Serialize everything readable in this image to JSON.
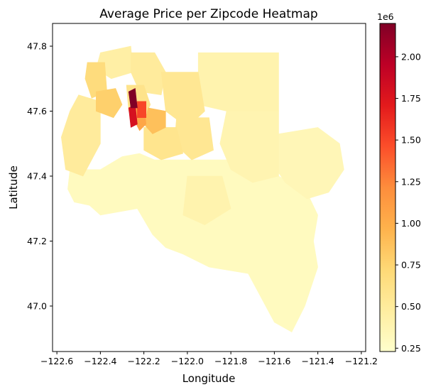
{
  "chart_data": {
    "type": "heatmap",
    "title": "Average Price per Zipcode Heatmap",
    "xlabel": "Longitude",
    "ylabel": "Latitude",
    "xlim": [
      -122.62,
      -121.18
    ],
    "ylim": [
      46.86,
      47.87
    ],
    "x_ticks": [
      {
        "value": -122.6,
        "label": "−122.6"
      },
      {
        "value": -122.4,
        "label": "−122.4"
      },
      {
        "value": -122.2,
        "label": "−122.2"
      },
      {
        "value": -122.0,
        "label": "−122.0"
      },
      {
        "value": -121.8,
        "label": "−121.8"
      },
      {
        "value": -121.6,
        "label": "−121.6"
      },
      {
        "value": -121.4,
        "label": "−121.4"
      },
      {
        "value": -121.2,
        "label": "−121.2"
      }
    ],
    "y_ticks": [
      {
        "value": 47.0,
        "label": "47.0"
      },
      {
        "value": 47.2,
        "label": "47.2"
      },
      {
        "value": 47.4,
        "label": "47.4"
      },
      {
        "value": 47.6,
        "label": "47.6"
      },
      {
        "value": 47.8,
        "label": "47.8"
      }
    ],
    "colorbar": {
      "colormap": "YlOrRd",
      "min": 0.23,
      "max": 2.2,
      "exponent_label": "1e6",
      "ticks": [
        {
          "value": 0.25,
          "label": "0.25"
        },
        {
          "value": 0.5,
          "label": "0.50"
        },
        {
          "value": 0.75,
          "label": "0.75"
        },
        {
          "value": 1.0,
          "label": "1.00"
        },
        {
          "value": 1.25,
          "label": "1.25"
        },
        {
          "value": 1.5,
          "label": "1.50"
        },
        {
          "value": 1.75,
          "label": "1.75"
        },
        {
          "value": 2.0,
          "label": "2.00"
        }
      ]
    },
    "colors": {
      "low": "#ffffcc",
      "mid_low": "#fed976",
      "mid": "#feb24c",
      "mid_high": "#fd8d3c",
      "high": "#fc4e2a",
      "very_high": "#e31a1c",
      "max": "#800026"
    },
    "regions": [
      {
        "value": 0.3,
        "polygon": [
          [
            -122.15,
            47.45
          ],
          [
            -121.82,
            47.45
          ],
          [
            -121.58,
            47.4
          ],
          [
            -121.45,
            47.35
          ],
          [
            -121.4,
            47.28
          ],
          [
            -121.42,
            47.2
          ],
          [
            -121.4,
            47.12
          ],
          [
            -121.46,
            47.0
          ],
          [
            -121.52,
            46.92
          ],
          [
            -121.6,
            46.95
          ],
          [
            -121.72,
            47.1
          ],
          [
            -121.9,
            47.12
          ],
          [
            -122.02,
            47.16
          ],
          [
            -122.1,
            47.18
          ],
          [
            -122.16,
            47.22
          ],
          [
            -122.23,
            47.3
          ],
          [
            -122.4,
            47.28
          ],
          [
            -122.45,
            47.31
          ],
          [
            -122.52,
            47.32
          ],
          [
            -122.55,
            47.36
          ],
          [
            -122.54,
            47.42
          ],
          [
            -122.4,
            47.42
          ],
          [
            -122.3,
            47.46
          ],
          [
            -122.22,
            47.47
          ]
        ]
      },
      {
        "value": 0.35,
        "polygon": [
          [
            -121.58,
            47.53
          ],
          [
            -121.4,
            47.55
          ],
          [
            -121.3,
            47.5
          ],
          [
            -121.28,
            47.42
          ],
          [
            -121.35,
            47.35
          ],
          [
            -121.45,
            47.33
          ],
          [
            -121.55,
            47.38
          ],
          [
            -121.62,
            47.45
          ]
        ]
      },
      {
        "value": 0.38,
        "polygon": [
          [
            -121.82,
            47.6
          ],
          [
            -121.58,
            47.6
          ],
          [
            -121.58,
            47.4
          ],
          [
            -121.7,
            47.38
          ],
          [
            -121.8,
            47.42
          ],
          [
            -121.85,
            47.5
          ]
        ]
      },
      {
        "value": 0.4,
        "polygon": [
          [
            -121.95,
            47.78
          ],
          [
            -121.58,
            47.78
          ],
          [
            -121.58,
            47.6
          ],
          [
            -121.82,
            47.6
          ],
          [
            -121.95,
            47.62
          ]
        ]
      },
      {
        "value": 0.4,
        "polygon": [
          [
            -122.0,
            47.4
          ],
          [
            -121.84,
            47.4
          ],
          [
            -121.8,
            47.3
          ],
          [
            -121.92,
            47.25
          ],
          [
            -122.02,
            47.28
          ]
        ]
      },
      {
        "value": 0.45,
        "polygon": [
          [
            -122.4,
            47.78
          ],
          [
            -122.26,
            47.8
          ],
          [
            -122.25,
            47.72
          ],
          [
            -122.35,
            47.7
          ],
          [
            -122.42,
            47.73
          ]
        ]
      },
      {
        "value": 0.5,
        "polygon": [
          [
            -122.26,
            47.78
          ],
          [
            -122.15,
            47.78
          ],
          [
            -122.1,
            47.72
          ],
          [
            -122.12,
            47.65
          ],
          [
            -122.22,
            47.66
          ],
          [
            -122.26,
            47.72
          ]
        ]
      },
      {
        "value": 0.55,
        "polygon": [
          [
            -122.12,
            47.72
          ],
          [
            -121.95,
            47.72
          ],
          [
            -121.92,
            47.6
          ],
          [
            -122.0,
            47.55
          ],
          [
            -122.1,
            47.6
          ]
        ]
      },
      {
        "value": 0.55,
        "polygon": [
          [
            -122.05,
            47.58
          ],
          [
            -121.9,
            47.58
          ],
          [
            -121.88,
            47.48
          ],
          [
            -121.98,
            47.45
          ],
          [
            -122.06,
            47.5
          ]
        ]
      },
      {
        "value": 0.58,
        "polygon": [
          [
            -122.2,
            47.55
          ],
          [
            -122.05,
            47.55
          ],
          [
            -122.02,
            47.47
          ],
          [
            -122.12,
            47.45
          ],
          [
            -122.2,
            47.48
          ]
        ]
      },
      {
        "value": 0.5,
        "polygon": [
          [
            -122.5,
            47.65
          ],
          [
            -122.4,
            47.63
          ],
          [
            -122.4,
            47.5
          ],
          [
            -122.48,
            47.4
          ],
          [
            -122.56,
            47.42
          ],
          [
            -122.58,
            47.52
          ],
          [
            -122.54,
            47.6
          ]
        ]
      },
      {
        "value": 0.6,
        "polygon": [
          [
            -122.28,
            47.68
          ],
          [
            -122.2,
            47.68
          ],
          [
            -122.17,
            47.62
          ],
          [
            -122.2,
            47.58
          ],
          [
            -122.27,
            47.6
          ]
        ]
      },
      {
        "value": 0.68,
        "polygon": [
          [
            -122.46,
            47.75
          ],
          [
            -122.38,
            47.75
          ],
          [
            -122.37,
            47.66
          ],
          [
            -122.44,
            47.64
          ],
          [
            -122.47,
            47.7
          ]
        ]
      },
      {
        "value": 0.78,
        "polygon": [
          [
            -122.42,
            47.66
          ],
          [
            -122.33,
            47.67
          ],
          [
            -122.3,
            47.62
          ],
          [
            -122.34,
            47.58
          ],
          [
            -122.42,
            47.6
          ]
        ]
      },
      {
        "value": 0.88,
        "polygon": [
          [
            -122.18,
            47.61
          ],
          [
            -122.1,
            47.6
          ],
          [
            -122.1,
            47.55
          ],
          [
            -122.16,
            47.53
          ],
          [
            -122.2,
            47.56
          ]
        ]
      },
      {
        "value": 1.05,
        "polygon": [
          [
            -122.24,
            47.63
          ],
          [
            -122.2,
            47.63
          ],
          [
            -122.19,
            47.56
          ],
          [
            -122.22,
            47.54
          ],
          [
            -122.25,
            47.58
          ]
        ]
      },
      {
        "value": 1.5,
        "polygon": [
          [
            -122.23,
            47.63
          ],
          [
            -122.19,
            47.63
          ],
          [
            -122.19,
            47.58
          ],
          [
            -122.23,
            47.58
          ]
        ]
      },
      {
        "value": 1.8,
        "polygon": [
          [
            -122.27,
            47.61
          ],
          [
            -122.24,
            47.62
          ],
          [
            -122.23,
            47.56
          ],
          [
            -122.26,
            47.55
          ]
        ]
      },
      {
        "value": 2.2,
        "polygon": [
          [
            -122.27,
            47.66
          ],
          [
            -122.24,
            47.67
          ],
          [
            -122.23,
            47.61
          ],
          [
            -122.26,
            47.61
          ]
        ]
      }
    ]
  }
}
